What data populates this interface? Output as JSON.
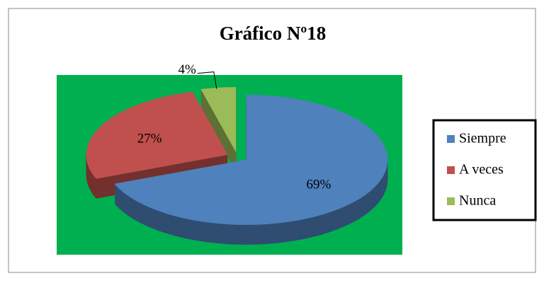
{
  "chart_data": {
    "type": "pie3d",
    "title": "Gráfico Nº18",
    "categories": [
      "Siempre",
      "A veces",
      "Nunca"
    ],
    "values": [
      69,
      27,
      4
    ],
    "value_labels": [
      "69%",
      "27%",
      "4%"
    ],
    "colors": [
      "#4f81bd",
      "#c0504d",
      "#9bbb59"
    ],
    "plot_background": "#00b050",
    "legend": "right"
  }
}
